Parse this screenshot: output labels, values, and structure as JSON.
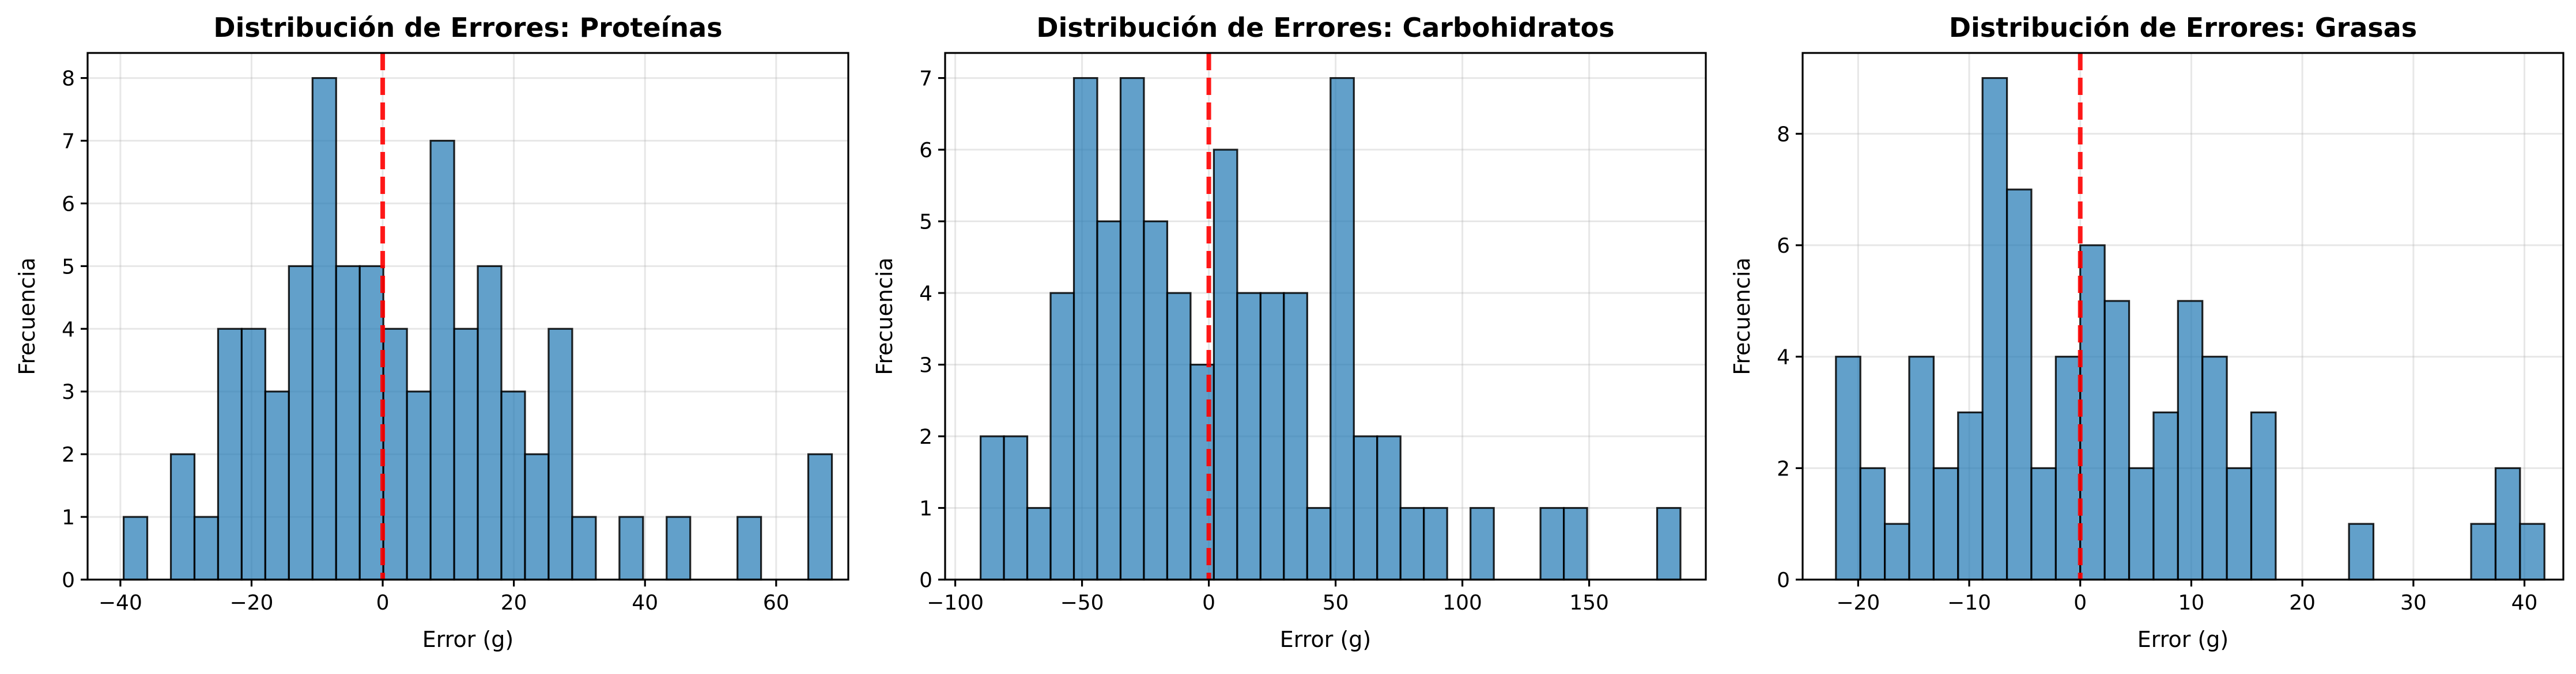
{
  "colors": {
    "bar": "#1f77b4",
    "zero_line": "#ff0000"
  },
  "chart_data": [
    {
      "type": "bar",
      "title": "Distribución de Errores: Proteínas",
      "xlabel": "Error (g)",
      "ylabel": "Frecuencia",
      "grid": true,
      "xlim": [
        -45,
        71
      ],
      "ylim": [
        0,
        8.4
      ],
      "xticks": [
        -40,
        -20,
        0,
        20,
        40,
        60
      ],
      "xtick_labels": [
        "−40",
        "−20",
        "0",
        "20",
        "40",
        "60"
      ],
      "yticks": [
        0,
        1,
        2,
        3,
        4,
        5,
        6,
        7,
        8
      ],
      "ytick_labels": [
        "0",
        "1",
        "2",
        "3",
        "4",
        "5",
        "6",
        "7",
        "8"
      ],
      "reference_line_x": 0,
      "bins": [
        [
          -39.5,
          -35.9,
          1
        ],
        [
          -35.9,
          -32.3,
          0
        ],
        [
          -32.3,
          -28.7,
          2
        ],
        [
          -28.7,
          -25.1,
          1
        ],
        [
          -25.1,
          -21.5,
          4
        ],
        [
          -21.5,
          -17.9,
          4
        ],
        [
          -17.9,
          -14.3,
          3
        ],
        [
          -14.3,
          -10.7,
          5
        ],
        [
          -10.7,
          -7.1,
          8
        ],
        [
          -7.1,
          -3.5,
          5
        ],
        [
          -3.5,
          0.1,
          5
        ],
        [
          0.1,
          3.7,
          4
        ],
        [
          3.7,
          7.3,
          3
        ],
        [
          7.3,
          10.9,
          7
        ],
        [
          10.9,
          14.5,
          4
        ],
        [
          14.5,
          18.1,
          5
        ],
        [
          18.1,
          21.7,
          3
        ],
        [
          21.7,
          25.3,
          2
        ],
        [
          25.3,
          28.9,
          4
        ],
        [
          28.9,
          32.5,
          1
        ],
        [
          32.5,
          36.1,
          0
        ],
        [
          36.1,
          39.7,
          1
        ],
        [
          39.7,
          43.3,
          0
        ],
        [
          43.3,
          46.9,
          1
        ],
        [
          46.9,
          50.5,
          0
        ],
        [
          50.5,
          54.1,
          0
        ],
        [
          54.1,
          57.7,
          1
        ],
        [
          57.7,
          61.3,
          0
        ],
        [
          61.3,
          64.9,
          0
        ],
        [
          64.9,
          68.5,
          2
        ]
      ]
    },
    {
      "type": "bar",
      "title": "Distribución de Errores: Carbohidratos",
      "xlabel": "Error (g)",
      "ylabel": "Frecuencia",
      "grid": true,
      "xlim": [
        -104,
        196
      ],
      "ylim": [
        0,
        7.35
      ],
      "xticks": [
        -100,
        -50,
        0,
        50,
        100,
        150
      ],
      "xtick_labels": [
        "−100",
        "−50",
        "0",
        "50",
        "100",
        "150"
      ],
      "yticks": [
        0,
        1,
        2,
        3,
        4,
        5,
        6,
        7
      ],
      "ytick_labels": [
        "0",
        "1",
        "2",
        "3",
        "4",
        "5",
        "6",
        "7"
      ],
      "reference_line_x": 0,
      "bins": [
        [
          -90,
          -80.8,
          2
        ],
        [
          -80.8,
          -71.6,
          2
        ],
        [
          -71.6,
          -62.4,
          1
        ],
        [
          -62.4,
          -53.2,
          4
        ],
        [
          -53.2,
          -44,
          7
        ],
        [
          -44,
          -34.8,
          5
        ],
        [
          -34.8,
          -25.6,
          7
        ],
        [
          -25.6,
          -16.4,
          5
        ],
        [
          -16.4,
          -7.2,
          4
        ],
        [
          -7.2,
          2,
          3
        ],
        [
          2,
          11.2,
          6
        ],
        [
          11.2,
          20.4,
          4
        ],
        [
          20.4,
          29.6,
          4
        ],
        [
          29.6,
          38.8,
          4
        ],
        [
          38.8,
          48,
          1
        ],
        [
          48,
          57.2,
          7
        ],
        [
          57.2,
          66.4,
          2
        ],
        [
          66.4,
          75.6,
          2
        ],
        [
          75.6,
          84.8,
          1
        ],
        [
          84.8,
          94,
          1
        ],
        [
          94,
          103.2,
          0
        ],
        [
          103.2,
          112.4,
          1
        ],
        [
          112.4,
          121.6,
          0
        ],
        [
          121.6,
          130.8,
          0
        ],
        [
          130.8,
          140,
          1
        ],
        [
          140,
          149.2,
          1
        ],
        [
          149.2,
          158.4,
          0
        ],
        [
          158.4,
          167.6,
          0
        ],
        [
          167.6,
          176.8,
          0
        ],
        [
          176.8,
          186,
          1
        ]
      ]
    },
    {
      "type": "bar",
      "title": "Distribución de Errores: Grasas",
      "xlabel": "Error (g)",
      "ylabel": "Frecuencia",
      "grid": true,
      "xlim": [
        -25,
        43.5
      ],
      "ylim": [
        0,
        9.45
      ],
      "xticks": [
        -20,
        -10,
        0,
        10,
        20,
        30,
        40
      ],
      "xtick_labels": [
        "−20",
        "−10",
        "0",
        "10",
        "20",
        "30",
        "40"
      ],
      "yticks": [
        0,
        2,
        4,
        6,
        8
      ],
      "ytick_labels": [
        "0",
        "2",
        "4",
        "6",
        "8"
      ],
      "reference_line_x": 0,
      "bins": [
        [
          -22,
          -19.8,
          4
        ],
        [
          -19.8,
          -17.6,
          2
        ],
        [
          -17.6,
          -15.4,
          1
        ],
        [
          -15.4,
          -13.2,
          4
        ],
        [
          -13.2,
          -11,
          2
        ],
        [
          -11,
          -8.8,
          3
        ],
        [
          -8.8,
          -6.6,
          9
        ],
        [
          -6.6,
          -4.4,
          7
        ],
        [
          -4.4,
          -2.2,
          2
        ],
        [
          -2.2,
          0,
          4
        ],
        [
          0,
          2.2,
          6
        ],
        [
          2.2,
          4.4,
          5
        ],
        [
          4.4,
          6.6,
          2
        ],
        [
          6.6,
          8.8,
          3
        ],
        [
          8.8,
          11,
          5
        ],
        [
          11,
          13.2,
          4
        ],
        [
          13.2,
          15.4,
          2
        ],
        [
          15.4,
          17.6,
          3
        ],
        [
          17.6,
          19.8,
          0
        ],
        [
          19.8,
          22,
          0
        ],
        [
          22,
          24.2,
          0
        ],
        [
          24.2,
          26.4,
          1
        ],
        [
          26.4,
          28.6,
          0
        ],
        [
          28.6,
          30.8,
          0
        ],
        [
          30.8,
          33,
          0
        ],
        [
          33,
          35.2,
          0
        ],
        [
          35.2,
          37.4,
          1
        ],
        [
          37.4,
          39.6,
          2
        ],
        [
          39.6,
          41.8,
          1
        ]
      ]
    }
  ]
}
